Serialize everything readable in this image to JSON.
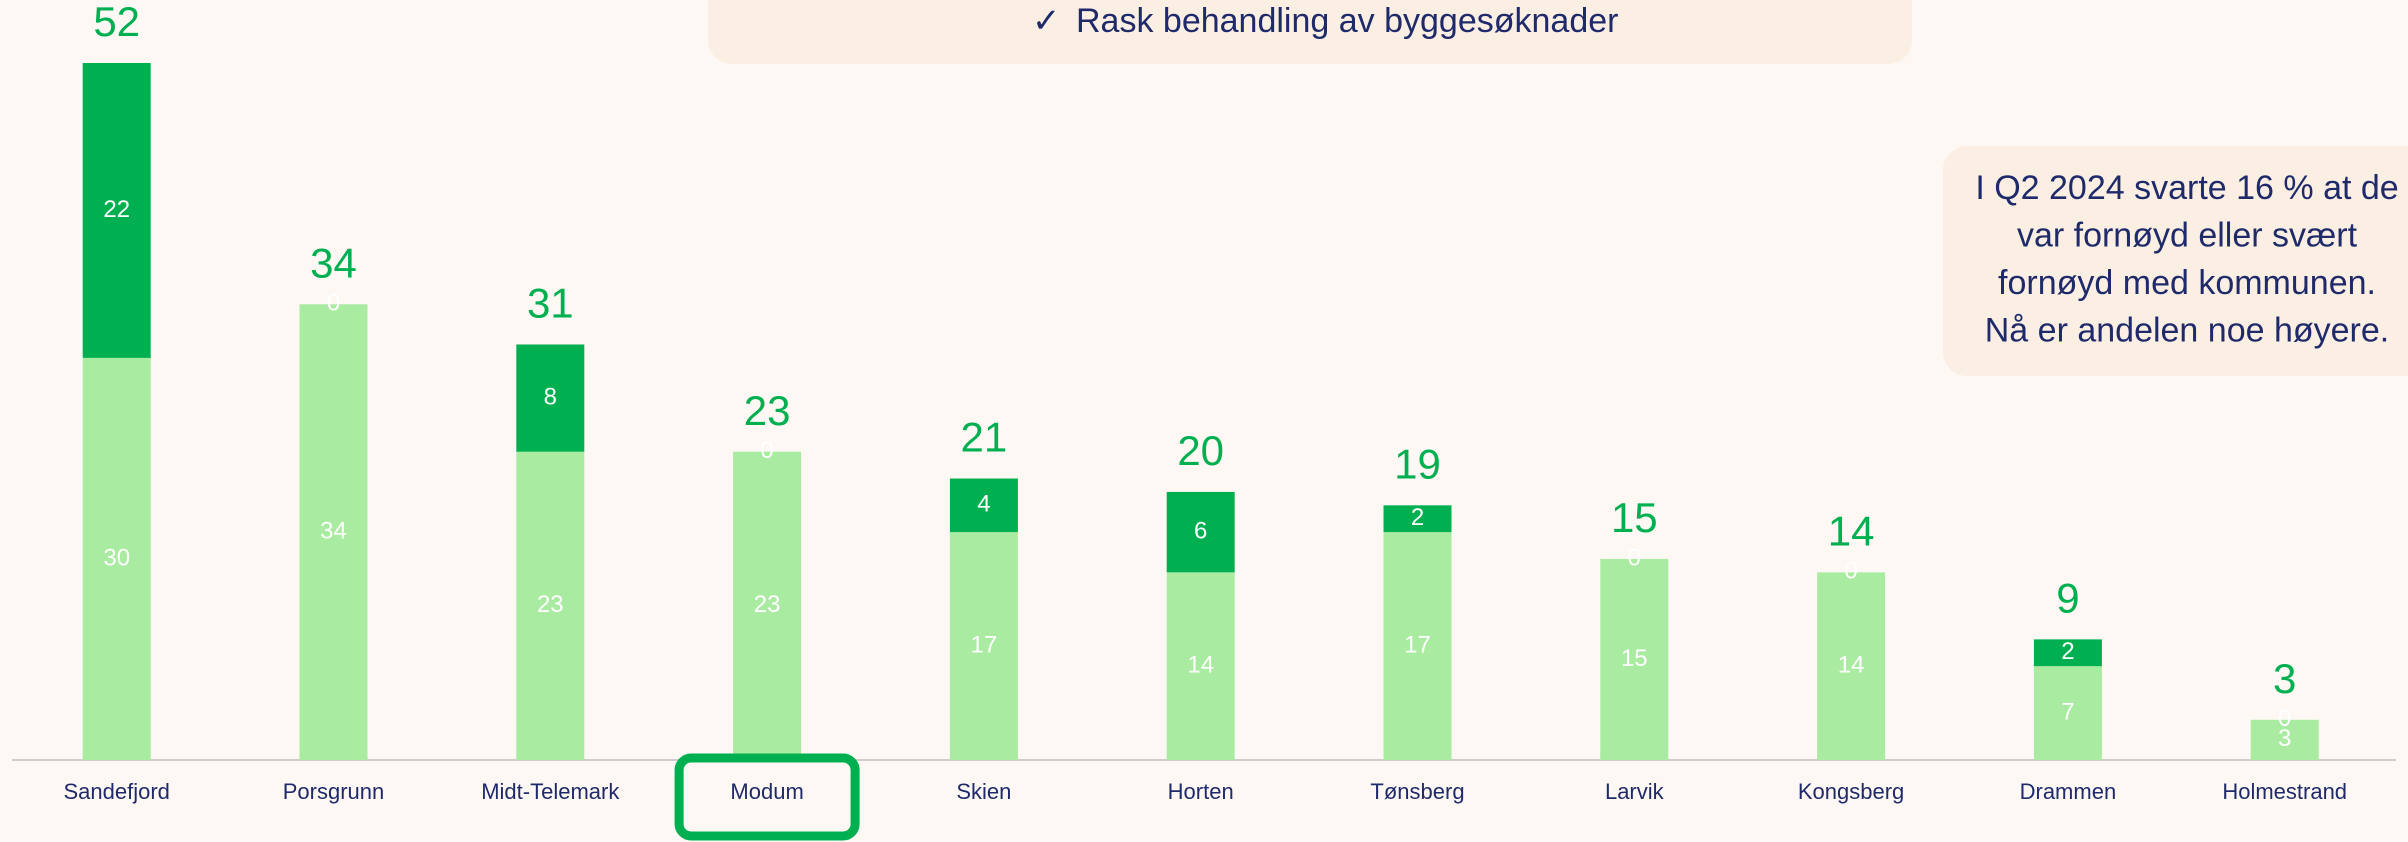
{
  "chart_data": {
    "type": "stacked_bar",
    "header": "Rask behandling av byggesøknader",
    "annotation": [
      "I Q2 2024 svarte 16 % at de",
      "var fornøyd eller svært",
      "fornøyd med kommunen.",
      "Nå er andelen noe høyere."
    ],
    "categories": [
      "Sandefjord",
      "Porsgrunn",
      "Midt-Telemark",
      "Modum",
      "Skien",
      "Horten",
      "Tønsberg",
      "Larvik",
      "Kongsberg",
      "Drammen",
      "Holmestrand"
    ],
    "series": [
      {
        "color": "#a9eba0",
        "values": [
          30,
          34,
          23,
          23,
          17,
          14,
          17,
          15,
          14,
          7,
          3
        ]
      },
      {
        "color": "#00b050",
        "values": [
          22,
          0,
          8,
          0,
          4,
          6,
          2,
          0,
          0,
          2,
          0
        ]
      }
    ],
    "totals": [
      52,
      34,
      31,
      23,
      21,
      20,
      19,
      15,
      14,
      9,
      3
    ],
    "total_color": "#00b050",
    "highlight": "Modum",
    "ylim": [
      0,
      52
    ]
  }
}
